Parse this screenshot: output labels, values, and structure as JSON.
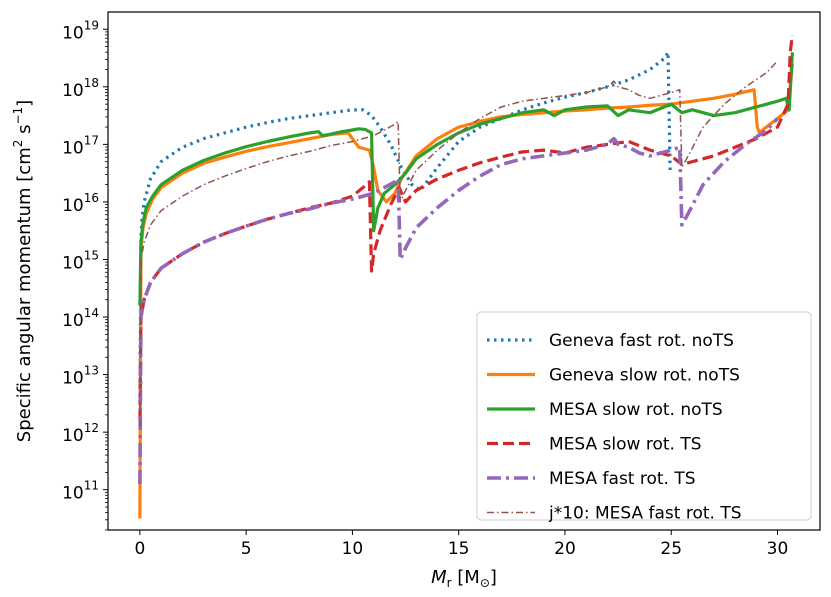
{
  "chart_data": {
    "type": "line",
    "title": "",
    "xlabel": "M_r [M_⊙]",
    "xlabel_main": "M",
    "xlabel_sub": "r",
    "xlabel_unit_open": " [M",
    "xlabel_unit_sub": "⊙",
    "xlabel_unit_close": "]",
    "ylabel": "Specific angular momentum [cm² s⁻¹]",
    "ylabel_main": "Specific angular momentum [cm",
    "ylabel_sup1": "2",
    "ylabel_mid": " s",
    "ylabel_sup2": "−1",
    "ylabel_end": "]",
    "xlim": [
      -1.5,
      32.0
    ],
    "ylim_log10": [
      10.3,
      19.3
    ],
    "yscale": "log",
    "x_ticks": [
      0,
      5,
      10,
      15,
      20,
      25,
      30
    ],
    "x_tick_labels": [
      "0",
      "5",
      "10",
      "15",
      "20",
      "25",
      "30"
    ],
    "y_ticks_exp": [
      11,
      12,
      13,
      14,
      15,
      16,
      17,
      18,
      19
    ],
    "y_tick_base": "10",
    "y_tick_exps": [
      "11",
      "12",
      "13",
      "14",
      "15",
      "16",
      "17",
      "18",
      "19"
    ],
    "legend_position": "lower-right",
    "series": [
      {
        "name": "Geneva fast rot. noTS",
        "color": "#1f77b4",
        "style": "dotted",
        "x": [
          0,
          0.05,
          0.1,
          0.2,
          0.5,
          1,
          2,
          3,
          4,
          5,
          6,
          7,
          8,
          9,
          10,
          10.5,
          10.9,
          11.3,
          11.8,
          12.3,
          12.8,
          13.2,
          14,
          15,
          16,
          17,
          18,
          19,
          20,
          21,
          22,
          23,
          24,
          24.7,
          24.85,
          24.95
        ],
        "y": [
          12.5,
          15.4,
          15.7,
          16.0,
          16.4,
          16.7,
          16.95,
          17.1,
          17.2,
          17.3,
          17.38,
          17.45,
          17.5,
          17.55,
          17.6,
          17.6,
          17.5,
          17.3,
          17.0,
          16.6,
          16.3,
          16.2,
          16.6,
          17.05,
          17.3,
          17.45,
          17.6,
          17.72,
          17.82,
          17.9,
          18.0,
          18.12,
          18.3,
          18.5,
          18.6,
          16.5
        ]
      },
      {
        "name": "Geneva slow rot. noTS",
        "color": "#ff7f0e",
        "style": "solid",
        "x": [
          0,
          0.05,
          0.15,
          0.3,
          0.6,
          1,
          2,
          3,
          4,
          5,
          6,
          7,
          8,
          9,
          9.8,
          10.3,
          10.8,
          11,
          11.2,
          11.6,
          12,
          12.3,
          13,
          14,
          15,
          16,
          17,
          18,
          19,
          20,
          21,
          22,
          23,
          24,
          25,
          26,
          27,
          28,
          28.9,
          29.05,
          29.15,
          29.3,
          30,
          30.5,
          30.7
        ],
        "y": [
          10.5,
          15.2,
          15.55,
          15.8,
          16.05,
          16.25,
          16.5,
          16.67,
          16.78,
          16.88,
          16.96,
          17.03,
          17.1,
          17.17,
          17.2,
          16.95,
          16.9,
          16.6,
          16.2,
          16.0,
          16.15,
          16.4,
          16.8,
          17.1,
          17.3,
          17.4,
          17.48,
          17.52,
          17.55,
          17.58,
          17.6,
          17.63,
          17.65,
          17.68,
          17.7,
          17.75,
          17.8,
          17.87,
          17.95,
          17.3,
          17.2,
          17.25,
          17.45,
          17.6,
          18.4
        ]
      },
      {
        "name": "MESA slow rot. noTS",
        "color": "#2ca02c",
        "style": "solid",
        "x": [
          0,
          0.05,
          0.15,
          0.3,
          0.6,
          1,
          2,
          3,
          4,
          5,
          6,
          7,
          8,
          8.4,
          8.6,
          9,
          9.5,
          10,
          10.3,
          10.6,
          10.9,
          11.0,
          11.2,
          11.5,
          12,
          12.5,
          13,
          14,
          15,
          16,
          17,
          18,
          19,
          19.5,
          20,
          21,
          22,
          22.5,
          23,
          24,
          25,
          25.5,
          26,
          27,
          28,
          29,
          30,
          30.4,
          30.55,
          30.7
        ],
        "y": [
          14.2,
          15.3,
          15.65,
          15.9,
          16.1,
          16.3,
          16.55,
          16.72,
          16.85,
          16.96,
          17.05,
          17.13,
          17.2,
          17.22,
          17.15,
          17.18,
          17.22,
          17.25,
          17.27,
          17.26,
          17.2,
          15.5,
          15.9,
          16.15,
          16.3,
          16.5,
          16.75,
          17.0,
          17.2,
          17.35,
          17.45,
          17.55,
          17.6,
          17.5,
          17.6,
          17.65,
          17.67,
          17.5,
          17.6,
          17.55,
          17.7,
          17.55,
          17.6,
          17.5,
          17.55,
          17.65,
          17.75,
          17.8,
          17.6,
          18.6
        ]
      },
      {
        "name": "MESA slow rot. TS",
        "color": "#d62728",
        "style": "dashed",
        "x": [
          0,
          0.05,
          0.2,
          0.5,
          1,
          2,
          3,
          4,
          5,
          6,
          7,
          8,
          9,
          10,
          10.5,
          10.8,
          10.9,
          11.0,
          11.3,
          11.8,
          12.2,
          12.5,
          13,
          14,
          15,
          16,
          17,
          18,
          19,
          20,
          21,
          22,
          23,
          24,
          25,
          25.5,
          26,
          27,
          28,
          29,
          30,
          30.5,
          30.6,
          30.7
        ],
        "y": [
          12.2,
          14.0,
          14.3,
          14.6,
          14.85,
          15.1,
          15.3,
          15.45,
          15.58,
          15.7,
          15.8,
          15.9,
          15.98,
          16.1,
          16.25,
          16.35,
          14.8,
          15.1,
          15.5,
          15.95,
          16.25,
          16.0,
          16.2,
          16.4,
          16.55,
          16.68,
          16.78,
          16.87,
          16.9,
          16.85,
          16.95,
          17.0,
          17.05,
          16.9,
          16.8,
          16.65,
          16.7,
          16.8,
          16.95,
          17.1,
          17.3,
          17.7,
          18.6,
          18.9
        ]
      },
      {
        "name": "MESA fast rot. TS",
        "color": "#9467bd",
        "style": "dashdot",
        "x": [
          0,
          0.05,
          0.2,
          0.5,
          1,
          2,
          3,
          4,
          5,
          6,
          7,
          8,
          9,
          10,
          11,
          11.5,
          12,
          12.15,
          12.25,
          12.5,
          13,
          14,
          15,
          16,
          17,
          18,
          19,
          20,
          21,
          22,
          22.3,
          22.5,
          23,
          23.5,
          24,
          25,
          25.4,
          25.5,
          25.8,
          26.5,
          27.5,
          28.5,
          29.5,
          30
        ],
        "y": [
          11.1,
          14.0,
          14.3,
          14.6,
          14.85,
          15.1,
          15.3,
          15.45,
          15.58,
          15.7,
          15.8,
          15.88,
          15.98,
          16.05,
          16.15,
          16.25,
          16.35,
          16.4,
          15.0,
          15.2,
          15.55,
          15.9,
          16.2,
          16.45,
          16.65,
          16.75,
          16.8,
          16.85,
          16.9,
          17.0,
          17.1,
          17.0,
          16.95,
          16.85,
          16.8,
          16.9,
          16.95,
          15.6,
          15.8,
          16.3,
          16.7,
          17.0,
          17.25,
          17.45
        ]
      },
      {
        "name": "j*10: MESA fast rot. TS",
        "color": "#8c564b",
        "style": "thin-dashdot",
        "x": [
          0,
          0.05,
          0.2,
          0.5,
          1,
          2,
          3,
          4,
          5,
          6,
          7,
          8,
          9,
          10,
          11,
          11.5,
          12,
          12.15,
          12.25,
          12.5,
          13,
          14,
          15,
          16,
          17,
          18,
          19,
          20,
          21,
          22,
          22.3,
          22.5,
          23,
          23.5,
          24,
          25,
          25.4,
          25.5,
          25.8,
          26.5,
          27.5,
          28.5,
          29.5,
          30
        ],
        "y": [
          12.1,
          15.0,
          15.3,
          15.6,
          15.85,
          16.1,
          16.3,
          16.45,
          16.58,
          16.7,
          16.8,
          16.88,
          16.98,
          17.05,
          17.15,
          17.25,
          17.35,
          17.4,
          16.0,
          16.2,
          16.55,
          16.9,
          17.2,
          17.45,
          17.65,
          17.75,
          17.8,
          17.85,
          17.9,
          18.0,
          18.1,
          18.0,
          17.95,
          17.85,
          17.8,
          17.9,
          17.95,
          16.6,
          16.8,
          17.3,
          17.7,
          18.0,
          18.25,
          18.45
        ]
      }
    ]
  }
}
